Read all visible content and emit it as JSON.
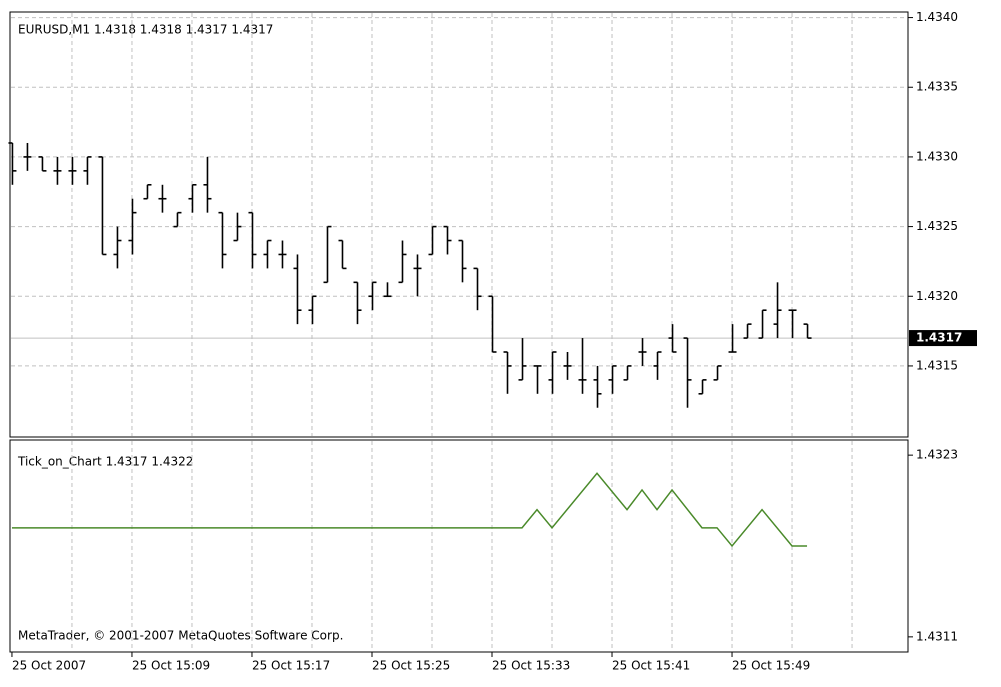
{
  "chart_data": [
    {
      "type": "ohlc",
      "title": "EURUSD,M1  1.4318 1.4318 1.4317 1.4317",
      "categories": [
        "25 Oct 2007",
        null,
        null,
        null,
        null,
        null,
        null,
        null,
        "25 Oct 15:09",
        null,
        null,
        null,
        null,
        null,
        null,
        null,
        "25 Oct 15:17",
        null,
        null,
        null,
        null,
        null,
        null,
        null,
        "25 Oct 15:25",
        null,
        null,
        null,
        null,
        null,
        null,
        null,
        "25 Oct 15:33",
        null,
        null,
        null,
        null,
        null,
        null,
        null,
        "25 Oct 15:41",
        null,
        null,
        null,
        null,
        null,
        null,
        null,
        "25 Oct 15:49",
        null,
        null,
        null,
        null,
        null
      ],
      "open": [
        1.4331,
        1.433,
        1.433,
        1.4329,
        1.4329,
        1.4329,
        1.433,
        1.4323,
        1.4324,
        1.4327,
        1.4327,
        1.4325,
        1.4327,
        1.4328,
        1.4326,
        1.4324,
        1.4326,
        1.4323,
        1.4323,
        1.4322,
        1.4319,
        1.4321,
        1.4324,
        1.4321,
        1.432,
        1.432,
        1.4321,
        1.4322,
        1.4323,
        1.4325,
        1.4324,
        1.4322,
        1.432,
        1.4316,
        1.4314,
        1.4315,
        1.4314,
        1.4315,
        1.4314,
        1.4314,
        1.4314,
        1.4314,
        1.4316,
        1.4315,
        1.4317,
        1.4317,
        1.4313,
        1.4314,
        1.4316,
        1.4317,
        1.4317,
        1.4318,
        1.4319,
        1.4318
      ],
      "high": [
        1.4331,
        1.4331,
        1.433,
        1.433,
        1.433,
        1.433,
        1.433,
        1.4325,
        1.4327,
        1.4328,
        1.4328,
        1.4326,
        1.4328,
        1.433,
        1.4326,
        1.4326,
        1.4326,
        1.4324,
        1.4324,
        1.4323,
        1.432,
        1.4325,
        1.4324,
        1.4321,
        1.4321,
        1.4321,
        1.4324,
        1.4323,
        1.4325,
        1.4325,
        1.4324,
        1.4322,
        1.432,
        1.4316,
        1.4317,
        1.4315,
        1.4316,
        1.4316,
        1.4317,
        1.4315,
        1.4315,
        1.4315,
        1.4317,
        1.4316,
        1.4318,
        1.4317,
        1.4314,
        1.4315,
        1.4318,
        1.4318,
        1.4319,
        1.4321,
        1.4319,
        1.4318
      ],
      "low": [
        1.4328,
        1.4329,
        1.4329,
        1.4328,
        1.4328,
        1.4328,
        1.4323,
        1.4322,
        1.4323,
        1.4327,
        1.4326,
        1.4325,
        1.4326,
        1.4326,
        1.4322,
        1.4324,
        1.4322,
        1.4322,
        1.4322,
        1.4318,
        1.4318,
        1.4321,
        1.4322,
        1.4318,
        1.4319,
        1.432,
        1.4321,
        1.432,
        1.4323,
        1.4323,
        1.4321,
        1.4319,
        1.4316,
        1.4313,
        1.4314,
        1.4313,
        1.4313,
        1.4314,
        1.4313,
        1.4312,
        1.4313,
        1.4314,
        1.4315,
        1.4314,
        1.4316,
        1.4312,
        1.4313,
        1.4314,
        1.4316,
        1.4317,
        1.4317,
        1.4317,
        1.4317,
        1.4317
      ],
      "close": [
        1.4329,
        1.433,
        1.4329,
        1.4329,
        1.4329,
        1.433,
        1.4323,
        1.4324,
        1.4326,
        1.4328,
        1.4327,
        1.4326,
        1.4328,
        1.4327,
        1.4323,
        1.4325,
        1.4323,
        1.4324,
        1.4323,
        1.4319,
        1.432,
        1.4325,
        1.4322,
        1.4319,
        1.4321,
        1.432,
        1.4323,
        1.4322,
        1.4325,
        1.4324,
        1.4322,
        1.432,
        1.4316,
        1.4315,
        1.4315,
        1.4315,
        1.4316,
        1.4315,
        1.4314,
        1.4313,
        1.4315,
        1.4315,
        1.4316,
        1.4316,
        1.4316,
        1.4314,
        1.4314,
        1.4315,
        1.4316,
        1.4318,
        1.4319,
        1.4319,
        1.4319,
        1.4317
      ],
      "color": "#000000",
      "last_price": 1.4317,
      "xlim": [
        -0.13,
        59.73
      ],
      "ylim": [
        1.43099,
        1.43404
      ],
      "yticks": [
        {
          "value": 1.434,
          "label": "1.4340"
        },
        1.4335,
        {
          "value": 1.433,
          "label": "1.4330"
        },
        1.4325,
        {
          "value": 1.432,
          "label": "1.4320"
        },
        1.4315
      ],
      "grid": true
    },
    {
      "type": "line",
      "title": "Tick_on_Chart 1.4317 1.4322",
      "annotation": "MetaTrader, © 2001-2007 MetaQuotes Software Corp.",
      "x": [
        0,
        34,
        35,
        36,
        39,
        41,
        42,
        43,
        44,
        46,
        47,
        48,
        50,
        52,
        53
      ],
      "values": [
        1.43182,
        1.43182,
        1.43194,
        1.43182,
        1.43218,
        1.43194,
        1.43207,
        1.43194,
        1.43207,
        1.43182,
        1.43182,
        1.4317,
        1.43194,
        1.4317,
        1.4317
      ],
      "color": "#4a8a2a",
      "xlim": [
        -0.13,
        59.73
      ],
      "ylim": [
        1.431,
        1.4324
      ],
      "yticks": [
        1.4323,
        1.4311
      ]
    }
  ]
}
